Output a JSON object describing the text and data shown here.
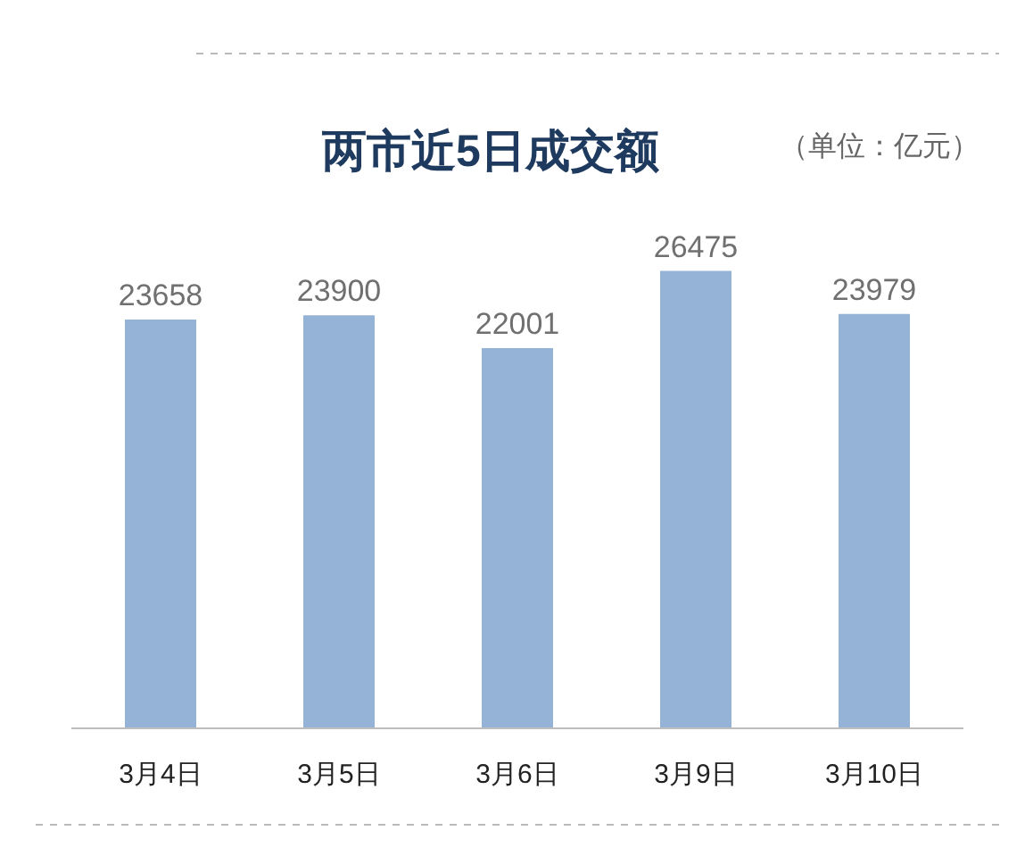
{
  "chart_data": {
    "type": "bar",
    "title": "两市近5日成交额",
    "annotations": [
      "（单位：亿元）"
    ],
    "categories": [
      "3月4日",
      "3月5日",
      "3月6日",
      "3月9日",
      "3月10日"
    ],
    "values": [
      23658,
      23900,
      22001,
      26475,
      23979
    ],
    "color": "#95b3d7",
    "data_labels": true
  }
}
